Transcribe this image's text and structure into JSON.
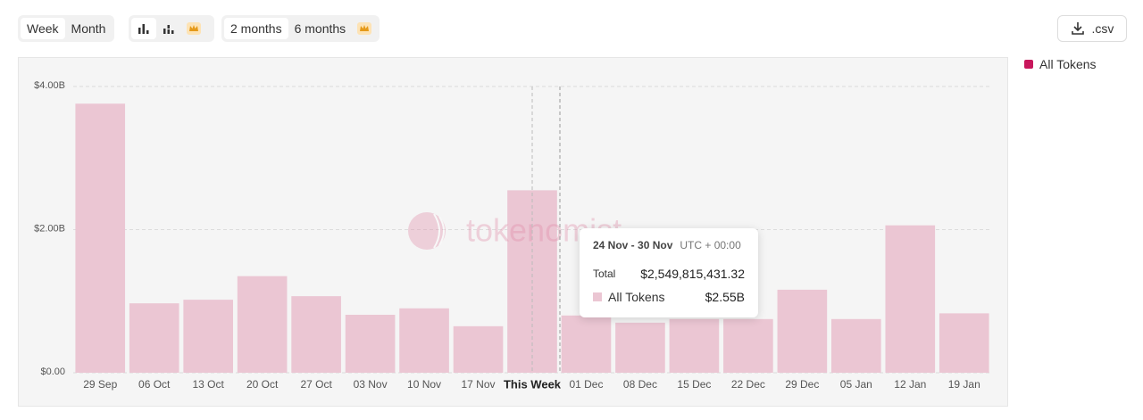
{
  "controls": {
    "intervals": [
      "Week",
      "Month"
    ],
    "ranges": [
      "2 months",
      "6 months"
    ],
    "download": ".csv"
  },
  "chart_data": {
    "type": "bar",
    "watermark": "tokenomist",
    "categories": [
      "29 Sep",
      "06 Oct",
      "13 Oct",
      "20 Oct",
      "27 Oct",
      "03 Nov",
      "10 Nov",
      "17 Nov",
      "This Week",
      "01 Dec",
      "08 Dec",
      "15 Dec",
      "22 Dec",
      "29 Dec",
      "05 Jan",
      "12 Jan",
      "19 Jan"
    ],
    "series": [
      {
        "name": "All Tokens",
        "color": "#ebc6d3",
        "values": [
          3760000000,
          970000000,
          1020000000,
          1350000000,
          1070000000,
          810000000,
          900000000,
          650000000,
          2549815431.32,
          800000000,
          700000000,
          750000000,
          750000000,
          1160000000,
          750000000,
          2060000000,
          830000000
        ]
      }
    ],
    "ylim": [
      0,
      4000000000
    ],
    "yticks": [
      {
        "value": 0,
        "label": "$0.00"
      },
      {
        "value": 2000000000,
        "label": "$2.00B"
      },
      {
        "value": 4000000000,
        "label": "$4.00B"
      }
    ],
    "grid": true,
    "tooltip": {
      "period": "24 Nov - 30 Nov",
      "timezone": "UTC + 00:00",
      "total_label": "Total",
      "total": "$2,549,815,431.32",
      "series_value": "$2.55B"
    }
  }
}
